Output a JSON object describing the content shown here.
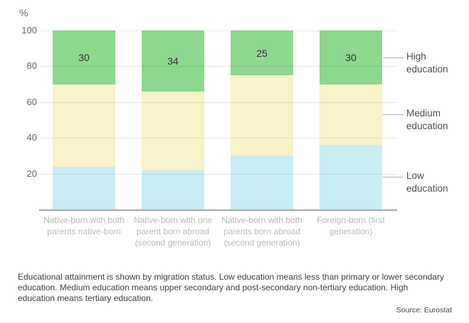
{
  "chart_data": {
    "type": "bar",
    "stacked": true,
    "categories": [
      "Native-born with both parents native-born",
      "Native-born with one parent born abroad (second generation)",
      "Native-born with both parents born abroad (second generation)",
      "Foreign-born (first generation)"
    ],
    "series": [
      {
        "name": "Low education",
        "color": "#c7eef5",
        "values": [
          24,
          22,
          30,
          36
        ],
        "show_label": false
      },
      {
        "name": "Medium education",
        "color": "#f8f2c8",
        "values": [
          46,
          44,
          45,
          34
        ],
        "show_label": false
      },
      {
        "name": "High education",
        "color": "#8cd88c",
        "values": [
          30,
          34,
          25,
          30
        ],
        "show_label": true
      }
    ],
    "ylabel": "%",
    "ylim": [
      0,
      100
    ],
    "yticks": [
      100,
      80,
      60,
      40,
      20
    ],
    "grid": true,
    "legend_position": "right"
  },
  "footer": {
    "caption": "Educational attainment is shown by migration status. Low education means less than primary or lower secondary education. Medium education means upper secondary and post-secondary non-tertiary education. High education means tertiary education.",
    "source": "Source: Eurostat"
  }
}
